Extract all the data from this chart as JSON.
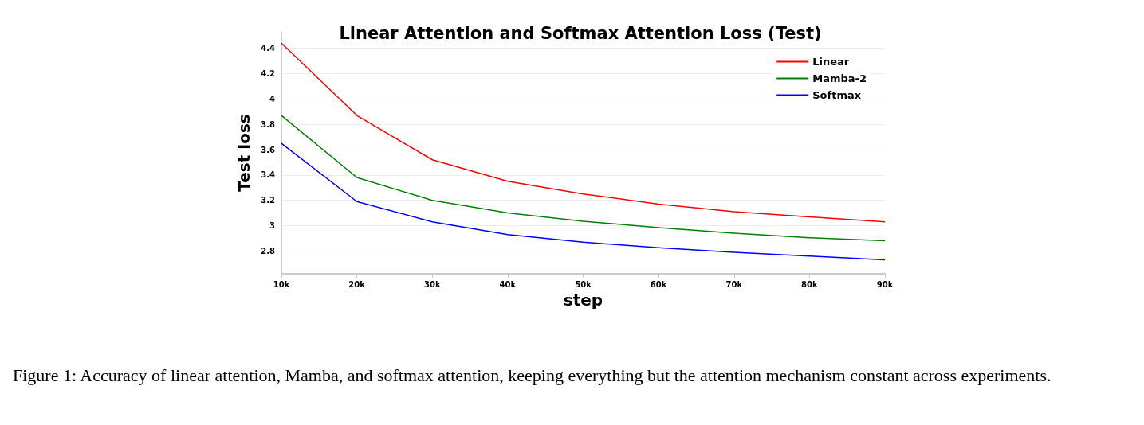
{
  "chart_data": {
    "type": "line",
    "title": "Linear Attention and Softmax Attention Loss (Test)",
    "xlabel": "step",
    "ylabel": "Test loss",
    "x": [
      10000,
      20000,
      30000,
      40000,
      50000,
      60000,
      70000,
      80000,
      90000
    ],
    "series": [
      {
        "name": "Linear",
        "color": "#ff0000",
        "values": [
          4.44,
          3.87,
          3.52,
          3.35,
          3.25,
          3.17,
          3.11,
          3.07,
          3.03
        ]
      },
      {
        "name": "Mamba-2",
        "color": "#008000",
        "values": [
          3.87,
          3.38,
          3.2,
          3.1,
          3.035,
          2.985,
          2.94,
          2.905,
          2.88
        ]
      },
      {
        "name": "Softmax",
        "color": "#0000ff",
        "values": [
          3.65,
          3.19,
          3.03,
          2.93,
          2.87,
          2.825,
          2.79,
          2.76,
          2.73
        ]
      }
    ],
    "xlim": [
      10000,
      90000
    ],
    "xticks": [
      {
        "value": 10000,
        "label": "10k"
      },
      {
        "value": 20000,
        "label": "20k"
      },
      {
        "value": 30000,
        "label": "30k"
      },
      {
        "value": 40000,
        "label": "40k"
      },
      {
        "value": 50000,
        "label": "50k"
      },
      {
        "value": 60000,
        "label": "60k"
      },
      {
        "value": 70000,
        "label": "70k"
      },
      {
        "value": 80000,
        "label": "80k"
      },
      {
        "value": 90000,
        "label": "90k"
      }
    ],
    "ylim": [
      2.62,
      4.53
    ],
    "yticks": [
      2.8,
      3,
      3.2,
      3.4,
      3.6,
      3.8,
      4,
      4.2,
      4.4
    ],
    "grid": "y",
    "legend": "top right",
    "marker": "none",
    "line_style": "solid",
    "annotations": [
      "Figure 1: Accuracy of linear attention, Mamba, and softmax attention, keeping everything but the attention mechanism constant across experiments."
    ]
  }
}
